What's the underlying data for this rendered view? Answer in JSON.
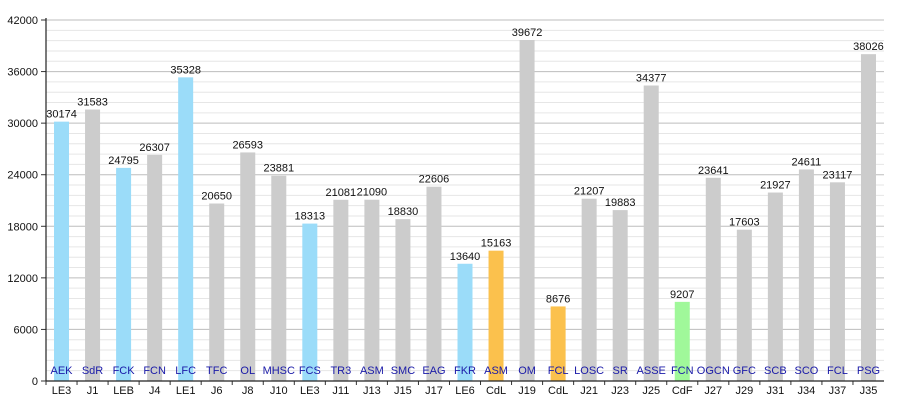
{
  "chart_data": {
    "type": "bar",
    "title": "",
    "xlabel": "",
    "ylabel": "",
    "ylim": [
      0,
      42000
    ],
    "yticks": [
      0,
      6000,
      12000,
      18000,
      24000,
      30000,
      36000,
      42000
    ],
    "grid": true,
    "legend": "none",
    "bars": [
      {
        "team": "AEK",
        "round": "LE3",
        "value": 30174,
        "color": "#9bdcf9"
      },
      {
        "team": "SdR",
        "round": "J1",
        "value": 31583,
        "color": "#cccccc"
      },
      {
        "team": "FCK",
        "round": "LEB",
        "value": 24795,
        "color": "#9bdcf9"
      },
      {
        "team": "FCN",
        "round": "J4",
        "value": 26307,
        "color": "#cccccc"
      },
      {
        "team": "LFC",
        "round": "LE1",
        "value": 35328,
        "color": "#9bdcf9"
      },
      {
        "team": "TFC",
        "round": "J6",
        "value": 20650,
        "color": "#cccccc"
      },
      {
        "team": "OL",
        "round": "J8",
        "value": 26593,
        "color": "#cccccc"
      },
      {
        "team": "MHSC",
        "round": "J10",
        "value": 23881,
        "color": "#cccccc"
      },
      {
        "team": "FCS",
        "round": "LE3",
        "value": 18313,
        "color": "#9bdcf9"
      },
      {
        "team": "TR3",
        "round": "J11",
        "value": 21081,
        "color": "#cccccc"
      },
      {
        "team": "ASM",
        "round": "J13",
        "value": 21090,
        "color": "#cccccc"
      },
      {
        "team": "SMC",
        "round": "J15",
        "value": 18830,
        "color": "#cccccc"
      },
      {
        "team": "EAG",
        "round": "J17",
        "value": 22606,
        "color": "#cccccc"
      },
      {
        "team": "FKR",
        "round": "LE6",
        "value": 13640,
        "color": "#9bdcf9"
      },
      {
        "team": "ASM",
        "round": "CdL",
        "value": 15163,
        "color": "#fbc14d"
      },
      {
        "team": "OM",
        "round": "J19",
        "value": 39672,
        "color": "#cccccc"
      },
      {
        "team": "FCL",
        "round": "CdL",
        "value": 8676,
        "color": "#fbc14d"
      },
      {
        "team": "LOSC",
        "round": "J21",
        "value": 21207,
        "color": "#cccccc"
      },
      {
        "team": "SR",
        "round": "J23",
        "value": 19883,
        "color": "#cccccc"
      },
      {
        "team": "ASSE",
        "round": "J25",
        "value": 34377,
        "color": "#cccccc"
      },
      {
        "team": "FCN",
        "round": "CdF",
        "value": 9207,
        "color": "#a0f89a"
      },
      {
        "team": "OGCN",
        "round": "J27",
        "value": 23641,
        "color": "#cccccc"
      },
      {
        "team": "GFC",
        "round": "J29",
        "value": 17603,
        "color": "#cccccc"
      },
      {
        "team": "SCB",
        "round": "J31",
        "value": 21927,
        "color": "#cccccc"
      },
      {
        "team": "SCO",
        "round": "J34",
        "value": 24611,
        "color": "#cccccc"
      },
      {
        "team": "FCL",
        "round": "J37",
        "value": 23117,
        "color": "#cccccc"
      },
      {
        "team": "PSG",
        "round": "J35",
        "value": 38026,
        "color": "#cccccc"
      }
    ]
  }
}
